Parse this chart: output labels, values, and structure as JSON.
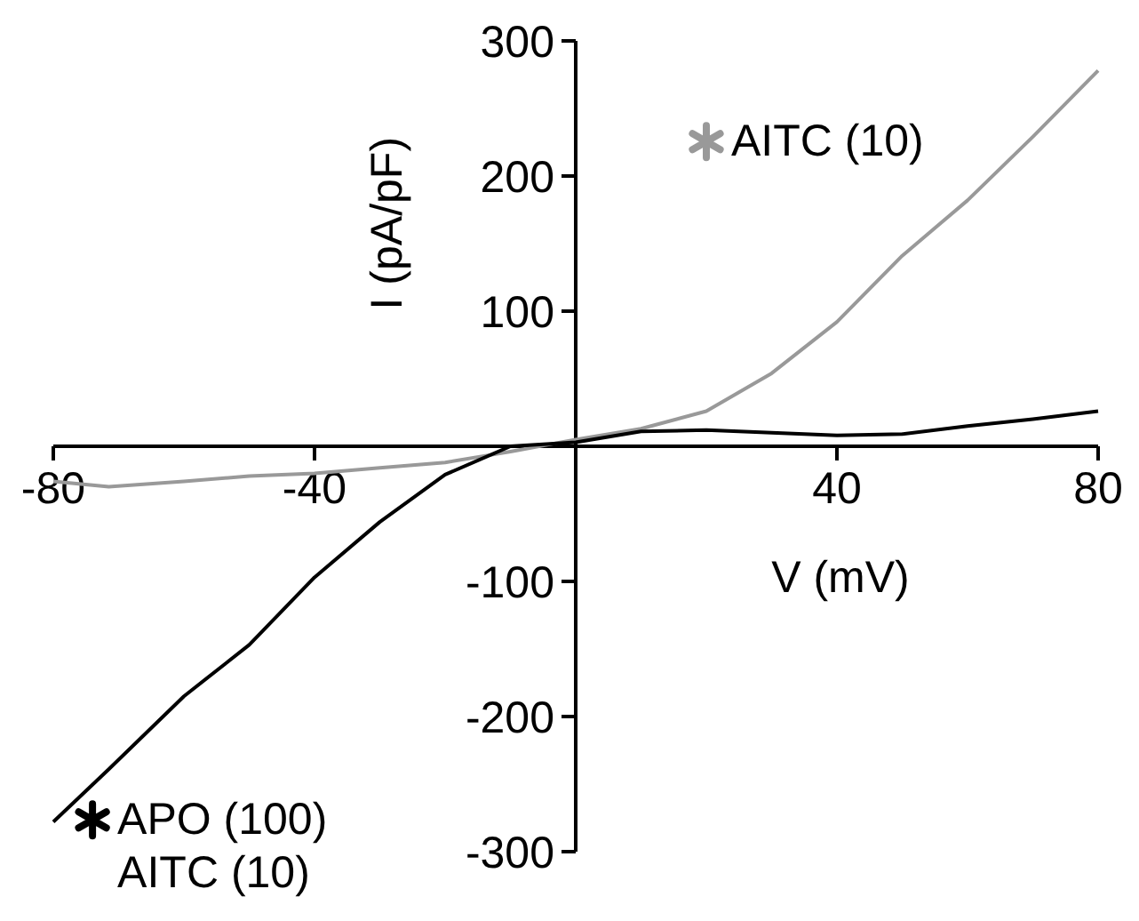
{
  "chart_data": {
    "type": "line",
    "xlabel": "V (mV)",
    "ylabel": "I (pA/pF)",
    "xlim": [
      -80,
      80
    ],
    "ylim": [
      -300,
      300
    ],
    "xticks": [
      -80,
      -40,
      40,
      80
    ],
    "yticks": [
      -300,
      -200,
      -100,
      100,
      200,
      300
    ],
    "legend": "bottom left",
    "line_style": "solid",
    "grid": false,
    "x": [
      -80,
      -71.5,
      -60,
      -50,
      -40,
      -30,
      -20,
      -10,
      0,
      10,
      20,
      30,
      40,
      50,
      60,
      70,
      80
    ],
    "series": [
      {
        "name": "AITC (10)",
        "color": "#999999",
        "values": [
          -26,
          -30,
          -26,
          -22,
          -20,
          -16,
          -12,
          -4,
          5,
          13,
          26,
          54,
          92,
          141,
          182,
          229,
          278
        ]
      },
      {
        "name": "APO (100)\nAITC (10)",
        "color": "#000000",
        "values": [
          -278,
          -239,
          -185,
          -147,
          -97,
          -56,
          -21,
          0,
          3,
          11,
          12,
          10,
          8,
          9,
          15,
          20,
          26
        ]
      }
    ]
  }
}
